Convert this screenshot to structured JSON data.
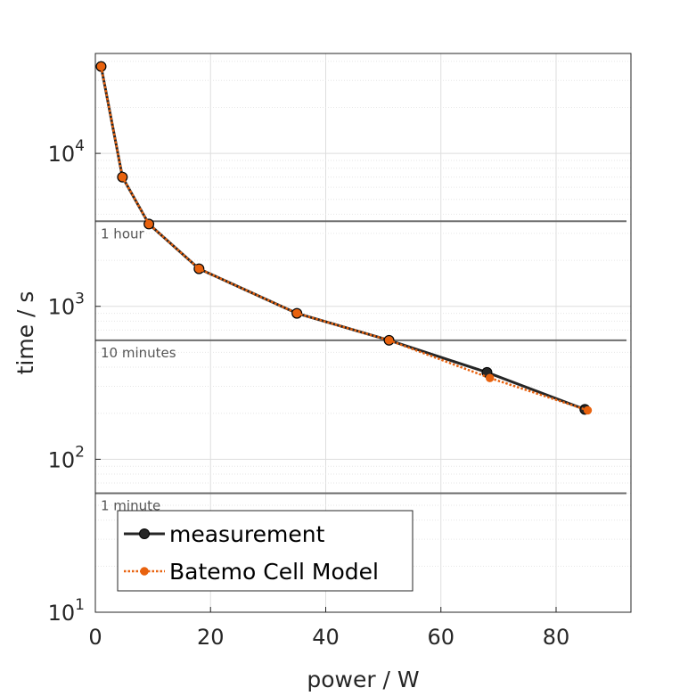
{
  "chart_data": {
    "type": "line",
    "xlabel": "power / W",
    "ylabel": "time / s",
    "xlim": [
      0,
      93
    ],
    "ylim": [
      10,
      45000
    ],
    "yscale": "log",
    "grid": true,
    "legend_position": "bottom-left",
    "x_ticks": [
      0,
      20,
      40,
      60,
      80
    ],
    "y_ticks": [
      {
        "value": 10,
        "base": "10",
        "exp": "1"
      },
      {
        "value": 100,
        "base": "10",
        "exp": "2"
      },
      {
        "value": 1000,
        "base": "10",
        "exp": "3"
      },
      {
        "value": 10000,
        "base": "10",
        "exp": "4"
      }
    ],
    "reference_lines": [
      {
        "value": 3600,
        "label": "1 hour"
      },
      {
        "value": 600,
        "label": "10 minutes"
      },
      {
        "value": 60,
        "label": "1 minute"
      }
    ],
    "series": [
      {
        "name": "measurement",
        "color": "#262626",
        "style": "solid",
        "x": [
          1.0,
          4.7,
          9.3,
          18.0,
          35.0,
          51.0,
          68.0,
          85.0
        ],
        "y": [
          37000,
          7000,
          3450,
          1760,
          900,
          600,
          370,
          212
        ]
      },
      {
        "name": "Batemo Cell Model",
        "color": "#E8620E",
        "style": "dotted",
        "x": [
          1.0,
          4.7,
          9.3,
          18.0,
          35.0,
          51.0,
          68.5,
          85.5
        ],
        "y": [
          37000,
          7000,
          3450,
          1760,
          900,
          600,
          340,
          209
        ]
      }
    ]
  }
}
